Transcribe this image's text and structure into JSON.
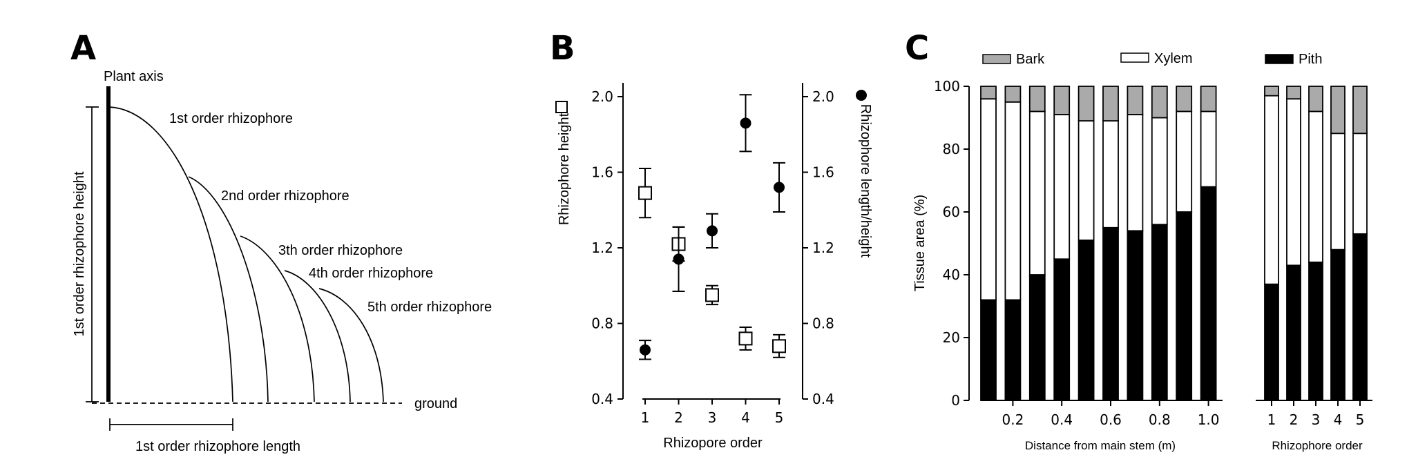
{
  "panels": {
    "a": {
      "letter": "A",
      "plant_axis": "Plant axis",
      "orders": [
        "1st order rhizophore",
        "2nd order rhizophore",
        "3th order rhizophore",
        "4th order rhizophore",
        "5th order rhizophore"
      ],
      "height_label": "1st order rhizophore height",
      "length_label": "1st order rhizophore length",
      "ground": "ground"
    },
    "b": {
      "letter": "B"
    },
    "c": {
      "letter": "C",
      "legend": {
        "bark": "Bark",
        "xylem": "Xylem",
        "pith": "Pith"
      }
    }
  },
  "chart_data": [
    {
      "type": "scatter",
      "panel": "B",
      "xlabel": "Rhizopore order",
      "ylabel_left": "Rhizophore height",
      "ylabel_right": "Rhizophore length/height",
      "x": [
        1,
        2,
        3,
        4,
        5
      ],
      "x_ticks": [
        "1",
        "2",
        "3",
        "4",
        "5"
      ],
      "ylim": [
        0.4,
        2.1
      ],
      "y_ticks": [
        "0.4",
        "0.8",
        "1.2",
        "1.6",
        "2.0"
      ],
      "series": [
        {
          "marker": "open-square",
          "axis": "left",
          "values": [
            1.49,
            1.22,
            0.95,
            0.72,
            0.68
          ],
          "err": [
            0.13,
            0.09,
            0.05,
            0.06,
            0.06
          ]
        },
        {
          "marker": "filled-circle",
          "axis": "right",
          "values": [
            0.66,
            1.14,
            1.29,
            1.86,
            1.52
          ],
          "err": [
            0.05,
            0.17,
            0.09,
            0.15,
            0.13
          ]
        }
      ]
    },
    {
      "type": "bar",
      "panel": "C-left",
      "stacked": true,
      "ylabel": "Tissue area (%)",
      "xlabel": "Distance from main stem (m)",
      "ylim": [
        0,
        100
      ],
      "y_ticks": [
        "0",
        "20",
        "40",
        "60",
        "80",
        "100"
      ],
      "categories": [
        0.1,
        0.2,
        0.3,
        0.4,
        0.5,
        0.6,
        0.7,
        0.8,
        0.9,
        1.0
      ],
      "x_tick_values": [
        0.2,
        0.4,
        0.6,
        0.8,
        1.0
      ],
      "x_ticks": [
        "0.2",
        "0.4",
        "0.6",
        "0.8",
        "1.0"
      ],
      "series": [
        {
          "name": "Pith",
          "color": "#000000",
          "values": [
            32,
            32,
            40,
            45,
            51,
            55,
            54,
            56,
            60,
            68
          ]
        },
        {
          "name": "Xylem",
          "color": "#ffffff",
          "values": [
            64,
            63,
            52,
            46,
            38,
            34,
            37,
            34,
            32,
            24
          ]
        },
        {
          "name": "Bark",
          "color": "#aaaaaa",
          "values": [
            4,
            5,
            8,
            9,
            11,
            11,
            9,
            10,
            8,
            8
          ]
        }
      ]
    },
    {
      "type": "bar",
      "panel": "C-right",
      "stacked": true,
      "xlabel": "Rhizophore order",
      "ylim": [
        0,
        100
      ],
      "categories": [
        "1",
        "2",
        "3",
        "4",
        "5"
      ],
      "series": [
        {
          "name": "Pith",
          "color": "#000000",
          "values": [
            37,
            43,
            44,
            48,
            53
          ]
        },
        {
          "name": "Xylem",
          "color": "#ffffff",
          "values": [
            60,
            53,
            48,
            37,
            32
          ]
        },
        {
          "name": "Bark",
          "color": "#aaaaaa",
          "values": [
            3,
            4,
            8,
            15,
            15
          ]
        }
      ]
    }
  ]
}
